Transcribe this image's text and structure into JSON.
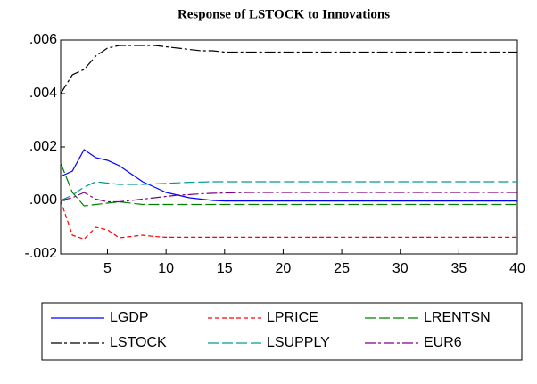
{
  "chart_data": {
    "type": "line",
    "title": "Response of LSTOCK to Innovations",
    "x": [
      1,
      2,
      3,
      4,
      5,
      6,
      7,
      8,
      9,
      10,
      11,
      12,
      13,
      14,
      15,
      16,
      17,
      18,
      19,
      20,
      21,
      22,
      23,
      24,
      25,
      26,
      27,
      28,
      29,
      30,
      31,
      32,
      33,
      34,
      35,
      36,
      37,
      38,
      39,
      40
    ],
    "xlim": [
      1,
      40
    ],
    "xticks": [
      5,
      10,
      15,
      20,
      25,
      30,
      35,
      40
    ],
    "ylim": [
      -0.002,
      0.006
    ],
    "yticks": [
      {
        "value": -0.002,
        "label": "-.002"
      },
      {
        "value": 0,
        "label": ".000"
      },
      {
        "value": 0.002,
        "label": ".002"
      },
      {
        "value": 0.004,
        "label": ".004"
      },
      {
        "value": 0.006,
        "label": ".006"
      }
    ],
    "legend": "bottom",
    "series": [
      {
        "name": "LGDP",
        "color": "#0000ff",
        "dash": "solid",
        "values": [
          0.0009,
          0.0011,
          0.0019,
          0.0016,
          0.0015,
          0.0013,
          0.001,
          0.0007,
          0.0005,
          0.0003,
          0.0002,
          0.0001,
          5e-05,
          0,
          -2e-05,
          -2e-05,
          -2e-05,
          -2e-05,
          -2e-05,
          -2e-05,
          -2e-05,
          -2e-05,
          -2e-05,
          -2e-05,
          -2e-05,
          -2e-05,
          -2e-05,
          -2e-05,
          -2e-05,
          -2e-05,
          -2e-05,
          -2e-05,
          -2e-05,
          -2e-05,
          -2e-05,
          -2e-05,
          -2e-05,
          -2e-05,
          -2e-05,
          -2e-05
        ]
      },
      {
        "name": "LPRICE",
        "color": "#ff0000",
        "dash": "dashed",
        "values": [
          0,
          -0.0013,
          -0.00145,
          -0.001,
          -0.0011,
          -0.0014,
          -0.00135,
          -0.0013,
          -0.00135,
          -0.00138,
          -0.00138,
          -0.00138,
          -0.00138,
          -0.00138,
          -0.00138,
          -0.00138,
          -0.00138,
          -0.00138,
          -0.00138,
          -0.00138,
          -0.00138,
          -0.00138,
          -0.00138,
          -0.00138,
          -0.00138,
          -0.00138,
          -0.00138,
          -0.00138,
          -0.00138,
          -0.00138,
          -0.00138,
          -0.00138,
          -0.00138,
          -0.00138,
          -0.00138,
          -0.00138,
          -0.00138,
          -0.00138,
          -0.00138,
          -0.00138
        ]
      },
      {
        "name": "LRENTSN",
        "color": "#008000",
        "dash": "long-dash",
        "values": [
          0.0014,
          0.0003,
          -0.0002,
          -0.00015,
          -0.0001,
          -5e-05,
          -0.0001,
          -0.00015,
          -0.00015,
          -0.00015,
          -0.00015,
          -0.00015,
          -0.00015,
          -0.00015,
          -0.00015,
          -0.00015,
          -0.00015,
          -0.00015,
          -0.00015,
          -0.00015,
          -0.00015,
          -0.00015,
          -0.00015,
          -0.00015,
          -0.00015,
          -0.00015,
          -0.00015,
          -0.00015,
          -0.00015,
          -0.00015,
          -0.00015,
          -0.00015,
          -0.00015,
          -0.00015,
          -0.00015,
          -0.00015,
          -0.00015,
          -0.00015,
          -0.00015,
          -0.00015
        ]
      },
      {
        "name": "LSTOCK",
        "color": "#000000",
        "dash": "dash-dot",
        "values": [
          0.004,
          0.0047,
          0.0049,
          0.0054,
          0.0057,
          0.0058,
          0.0058,
          0.0058,
          0.0058,
          0.00575,
          0.0057,
          0.00565,
          0.0056,
          0.0056,
          0.00555,
          0.00555,
          0.00555,
          0.00555,
          0.00555,
          0.00555,
          0.00555,
          0.00555,
          0.00555,
          0.00555,
          0.00555,
          0.00555,
          0.00555,
          0.00555,
          0.00555,
          0.00555,
          0.00555,
          0.00555,
          0.00555,
          0.00555,
          0.00555,
          0.00555,
          0.00555,
          0.00555,
          0.00555,
          0.00555
        ]
      },
      {
        "name": "LSUPPLY",
        "color": "#009999",
        "dash": "long-dash",
        "values": [
          0,
          0.0002,
          0.0005,
          0.0007,
          0.00065,
          0.0006,
          0.0006,
          0.0006,
          0.00062,
          0.00064,
          0.00066,
          0.00068,
          0.00069,
          0.0007,
          0.0007,
          0.0007,
          0.0007,
          0.0007,
          0.0007,
          0.0007,
          0.0007,
          0.0007,
          0.0007,
          0.0007,
          0.0007,
          0.0007,
          0.0007,
          0.0007,
          0.0007,
          0.0007,
          0.0007,
          0.0007,
          0.0007,
          0.0007,
          0.0007,
          0.0007,
          0.0007,
          0.0007,
          0.0007,
          0.0007
        ]
      },
      {
        "name": "EUR6",
        "color": "#800080",
        "dash": "dash-dot",
        "values": [
          0,
          0.0001,
          0.0003,
          5e-05,
          -5e-05,
          -5e-05,
          0,
          5e-05,
          0.0001,
          0.00015,
          0.0002,
          0.00022,
          0.00025,
          0.00027,
          0.00028,
          0.00029,
          0.0003,
          0.0003,
          0.0003,
          0.0003,
          0.0003,
          0.0003,
          0.0003,
          0.0003,
          0.0003,
          0.0003,
          0.0003,
          0.0003,
          0.0003,
          0.0003,
          0.0003,
          0.0003,
          0.0003,
          0.0003,
          0.0003,
          0.0003,
          0.0003,
          0.0003,
          0.0003,
          0.0003
        ]
      }
    ]
  }
}
